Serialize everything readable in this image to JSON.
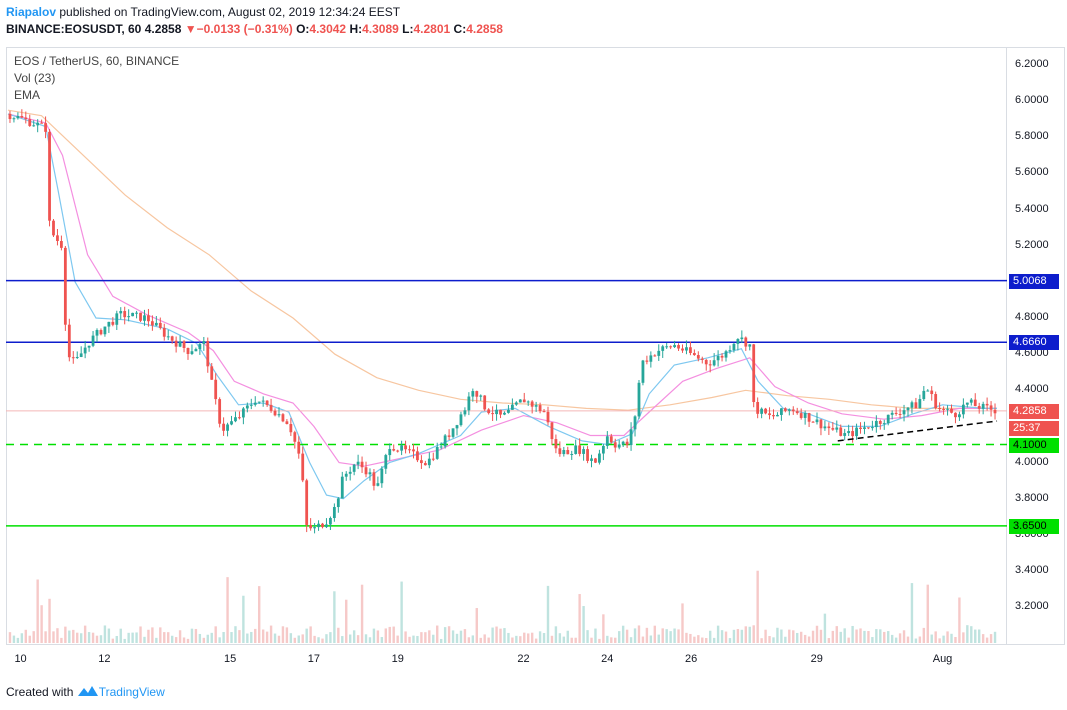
{
  "header": {
    "author": "Riapalov",
    "published": "published on TradingView.com, August 02, 2019 12:34:24 EEST",
    "symbol": "BINANCE:EOSUSDT, 60",
    "last": "4.2858",
    "change_arrow": "▼",
    "change": "−0.0133 (−0.31%)",
    "o_label": "O:",
    "o": "4.3042",
    "h_label": "H:",
    "h": "4.3089",
    "l_label": "L:",
    "l": "4.2801",
    "c_label": "C:",
    "c": "4.2858"
  },
  "legend": {
    "title": "EOS / TetherUS, 60, BINANCE",
    "vol": "Vol (23)",
    "ema": "EMA"
  },
  "footer": {
    "created": "Created with",
    "brand": "TradingView"
  },
  "colors": {
    "up": "#26a69a",
    "down": "#ef5350",
    "ema_fast": "#7ec8f0",
    "ema_mid": "#f48fe0",
    "ema_slow": "#f7c6a0",
    "blue_line": "#0d1dcc",
    "green_line": "#00e000",
    "last_price_line": "#f4b6b6"
  },
  "chart_data": {
    "type": "candlestick",
    "x_ticks": [
      "10",
      "12",
      "15",
      "17",
      "19",
      "22",
      "24",
      "26",
      "29",
      "Aug"
    ],
    "y_ticks": [
      "6.2000",
      "6.0000",
      "5.8000",
      "5.6000",
      "5.4000",
      "5.2000",
      "4.8000",
      "4.6000",
      "4.4000",
      "4.0000",
      "3.8000",
      "3.6000",
      "3.4000",
      "3.2000"
    ],
    "ylim": [
      3.09,
      6.3
    ],
    "horizontal_levels": [
      {
        "value": 5.0068,
        "label": "5.0068",
        "style": "solid",
        "color": "#0d1dcc"
      },
      {
        "value": 4.666,
        "label": "4.6660",
        "style": "solid",
        "color": "#0d1dcc"
      },
      {
        "value": 4.1,
        "label": "4.1000",
        "style": "dashed",
        "color": "#00e000"
      },
      {
        "value": 3.65,
        "label": "3.6500",
        "style": "solid",
        "color": "#00e000"
      }
    ],
    "last_price": {
      "value": 4.2858,
      "label": "4.2858"
    },
    "countdown": "25:37",
    "trendline": [
      [
        29.5,
        4.12
      ],
      [
        33.3,
        4.23
      ]
    ],
    "x_range": [
      9.7,
      33.3
    ],
    "price_path": [
      [
        9.7,
        5.93
      ],
      [
        10.3,
        5.88
      ],
      [
        10.6,
        5.85
      ],
      [
        10.65,
        5.35
      ],
      [
        10.8,
        5.25
      ],
      [
        11.0,
        5.2
      ],
      [
        11.1,
        4.6
      ],
      [
        11.3,
        4.55
      ],
      [
        11.6,
        4.66
      ],
      [
        12.0,
        4.75
      ],
      [
        12.4,
        4.82
      ],
      [
        13.0,
        4.8
      ],
      [
        13.5,
        4.7
      ],
      [
        14.0,
        4.62
      ],
      [
        14.4,
        4.66
      ],
      [
        14.5,
        4.5
      ],
      [
        14.8,
        4.18
      ],
      [
        15.2,
        4.25
      ],
      [
        15.6,
        4.35
      ],
      [
        16.0,
        4.3
      ],
      [
        16.4,
        4.22
      ],
      [
        16.7,
        4.0
      ],
      [
        16.8,
        3.65
      ],
      [
        17.0,
        3.63
      ],
      [
        17.3,
        3.68
      ],
      [
        17.5,
        3.75
      ],
      [
        17.7,
        3.92
      ],
      [
        18.0,
        4.0
      ],
      [
        18.3,
        3.95
      ],
      [
        18.5,
        3.85
      ],
      [
        18.8,
        4.1
      ],
      [
        19.3,
        4.05
      ],
      [
        19.7,
        4.0
      ],
      [
        20.2,
        4.15
      ],
      [
        20.6,
        4.3
      ],
      [
        20.8,
        4.42
      ],
      [
        21.1,
        4.3
      ],
      [
        21.5,
        4.25
      ],
      [
        22.0,
        4.35
      ],
      [
        22.5,
        4.28
      ],
      [
        22.8,
        4.05
      ],
      [
        23.3,
        4.08
      ],
      [
        23.7,
        4.0
      ],
      [
        24.0,
        4.15
      ],
      [
        24.2,
        4.1
      ],
      [
        24.5,
        4.1
      ],
      [
        24.7,
        4.3
      ],
      [
        24.8,
        4.55
      ],
      [
        25.2,
        4.62
      ],
      [
        25.6,
        4.65
      ],
      [
        26.0,
        4.6
      ],
      [
        26.4,
        4.55
      ],
      [
        26.8,
        4.6
      ],
      [
        27.1,
        4.7
      ],
      [
        27.4,
        4.65
      ],
      [
        27.5,
        4.3
      ],
      [
        27.9,
        4.25
      ],
      [
        28.4,
        4.3
      ],
      [
        28.8,
        4.25
      ],
      [
        29.2,
        4.2
      ],
      [
        29.7,
        4.15
      ],
      [
        30.2,
        4.2
      ],
      [
        30.7,
        4.25
      ],
      [
        31.1,
        4.3
      ],
      [
        31.4,
        4.32
      ],
      [
        31.6,
        4.42
      ],
      [
        31.9,
        4.3
      ],
      [
        32.3,
        4.27
      ],
      [
        32.6,
        4.33
      ],
      [
        33.0,
        4.3
      ],
      [
        33.3,
        4.29
      ]
    ],
    "ema_fast": [
      [
        9.7,
        5.93
      ],
      [
        10.6,
        5.86
      ],
      [
        10.9,
        5.5
      ],
      [
        11.3,
        5.0
      ],
      [
        11.8,
        4.8
      ],
      [
        12.5,
        4.79
      ],
      [
        13.5,
        4.74
      ],
      [
        14.2,
        4.66
      ],
      [
        14.7,
        4.48
      ],
      [
        15.2,
        4.32
      ],
      [
        15.8,
        4.33
      ],
      [
        16.4,
        4.28
      ],
      [
        16.9,
        4.0
      ],
      [
        17.3,
        3.82
      ],
      [
        17.7,
        3.8
      ],
      [
        18.2,
        3.9
      ],
      [
        18.8,
        4.0
      ],
      [
        19.5,
        4.05
      ],
      [
        20.5,
        4.15
      ],
      [
        21.0,
        4.28
      ],
      [
        21.8,
        4.3
      ],
      [
        22.6,
        4.2
      ],
      [
        23.4,
        4.12
      ],
      [
        24.0,
        4.1
      ],
      [
        24.6,
        4.16
      ],
      [
        25.0,
        4.38
      ],
      [
        25.6,
        4.54
      ],
      [
        26.4,
        4.58
      ],
      [
        27.2,
        4.63
      ],
      [
        27.6,
        4.45
      ],
      [
        28.2,
        4.3
      ],
      [
        28.8,
        4.27
      ],
      [
        29.6,
        4.2
      ],
      [
        30.5,
        4.2
      ],
      [
        31.3,
        4.27
      ],
      [
        32.0,
        4.32
      ],
      [
        33.0,
        4.3
      ],
      [
        33.3,
        4.3
      ]
    ],
    "ema_mid": [
      [
        9.7,
        5.93
      ],
      [
        10.6,
        5.88
      ],
      [
        11.0,
        5.7
      ],
      [
        11.6,
        5.15
      ],
      [
        12.2,
        4.92
      ],
      [
        13.0,
        4.82
      ],
      [
        14.0,
        4.72
      ],
      [
        14.6,
        4.62
      ],
      [
        15.1,
        4.45
      ],
      [
        15.8,
        4.38
      ],
      [
        16.5,
        4.33
      ],
      [
        17.0,
        4.2
      ],
      [
        17.6,
        4.0
      ],
      [
        18.2,
        3.98
      ],
      [
        19.0,
        4.02
      ],
      [
        20.0,
        4.07
      ],
      [
        21.0,
        4.18
      ],
      [
        22.0,
        4.26
      ],
      [
        22.8,
        4.22
      ],
      [
        23.6,
        4.15
      ],
      [
        24.4,
        4.15
      ],
      [
        25.0,
        4.28
      ],
      [
        25.8,
        4.45
      ],
      [
        26.6,
        4.52
      ],
      [
        27.4,
        4.58
      ],
      [
        28.0,
        4.42
      ],
      [
        28.8,
        4.33
      ],
      [
        29.6,
        4.27
      ],
      [
        30.6,
        4.24
      ],
      [
        31.5,
        4.26
      ],
      [
        32.4,
        4.3
      ],
      [
        33.3,
        4.3
      ]
    ],
    "ema_slow": [
      [
        9.7,
        5.95
      ],
      [
        10.5,
        5.92
      ],
      [
        11.5,
        5.7
      ],
      [
        12.5,
        5.48
      ],
      [
        13.5,
        5.3
      ],
      [
        14.5,
        5.15
      ],
      [
        15.5,
        4.95
      ],
      [
        16.5,
        4.8
      ],
      [
        17.5,
        4.6
      ],
      [
        18.5,
        4.47
      ],
      [
        19.5,
        4.4
      ],
      [
        20.5,
        4.35
      ],
      [
        21.5,
        4.33
      ],
      [
        22.5,
        4.32
      ],
      [
        23.5,
        4.3
      ],
      [
        24.5,
        4.29
      ],
      [
        25.5,
        4.32
      ],
      [
        26.5,
        4.36
      ],
      [
        27.3,
        4.4
      ],
      [
        28.3,
        4.37
      ],
      [
        29.3,
        4.35
      ],
      [
        30.3,
        4.32
      ],
      [
        31.3,
        4.3
      ],
      [
        32.3,
        4.3
      ],
      [
        33.3,
        4.3
      ]
    ]
  }
}
